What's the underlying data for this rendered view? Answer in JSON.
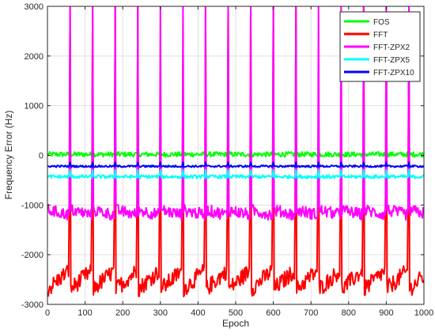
{
  "chart_data": {
    "type": "line",
    "title": "",
    "xlabel": "Epoch",
    "ylabel": "Frequency Error (Hz)",
    "xlim": [
      0,
      1000
    ],
    "ylim": [
      -3000,
      3000
    ],
    "xticks": [
      0,
      100,
      200,
      300,
      400,
      500,
      600,
      700,
      800,
      900,
      1000
    ],
    "yticks": [
      -3000,
      -2000,
      -1000,
      0,
      1000,
      2000,
      3000
    ],
    "grid": true,
    "legend_position": "top-right",
    "spike_epochs": [
      60,
      120,
      180,
      240,
      300,
      360,
      420,
      480,
      540,
      600,
      660,
      720,
      780,
      840,
      900,
      960
    ],
    "series": [
      {
        "name": "FOS",
        "color": "#00ff00",
        "baseline": 20,
        "noise": 50,
        "spike_values": [
          null,
          null,
          null,
          null,
          null,
          null,
          null,
          null,
          null,
          null,
          null,
          null,
          null,
          null,
          null,
          null
        ]
      },
      {
        "name": "FFT",
        "color": "#ff0000",
        "baseline": -2450,
        "noise": 280,
        "spike_values": [
          3000,
          3000,
          3000,
          3000,
          1220,
          1840,
          3000,
          3000,
          3000,
          3000,
          3000,
          1220,
          1220,
          3000,
          3000,
          3000
        ]
      },
      {
        "name": "FFT-ZPX2",
        "color": "#ff00ff",
        "baseline": -1180,
        "noise": 120,
        "spike_values": [
          3000,
          3000,
          3000,
          3000,
          3000,
          3000,
          3000,
          3000,
          3000,
          3000,
          3000,
          3000,
          3000,
          3000,
          3000,
          3000
        ]
      },
      {
        "name": "FFT-ZPX5",
        "color": "#00ffff",
        "baseline": -430,
        "noise": 35,
        "spike_values": [
          null,
          null,
          null,
          null,
          null,
          null,
          null,
          null,
          null,
          null,
          null,
          null,
          null,
          null,
          null,
          null
        ]
      },
      {
        "name": "FFT-ZPX10",
        "color": "#0000ff",
        "baseline": -220,
        "noise": 20,
        "spike_values": [
          null,
          null,
          null,
          null,
          null,
          null,
          null,
          null,
          null,
          null,
          null,
          null,
          null,
          null,
          null,
          null
        ]
      }
    ]
  }
}
